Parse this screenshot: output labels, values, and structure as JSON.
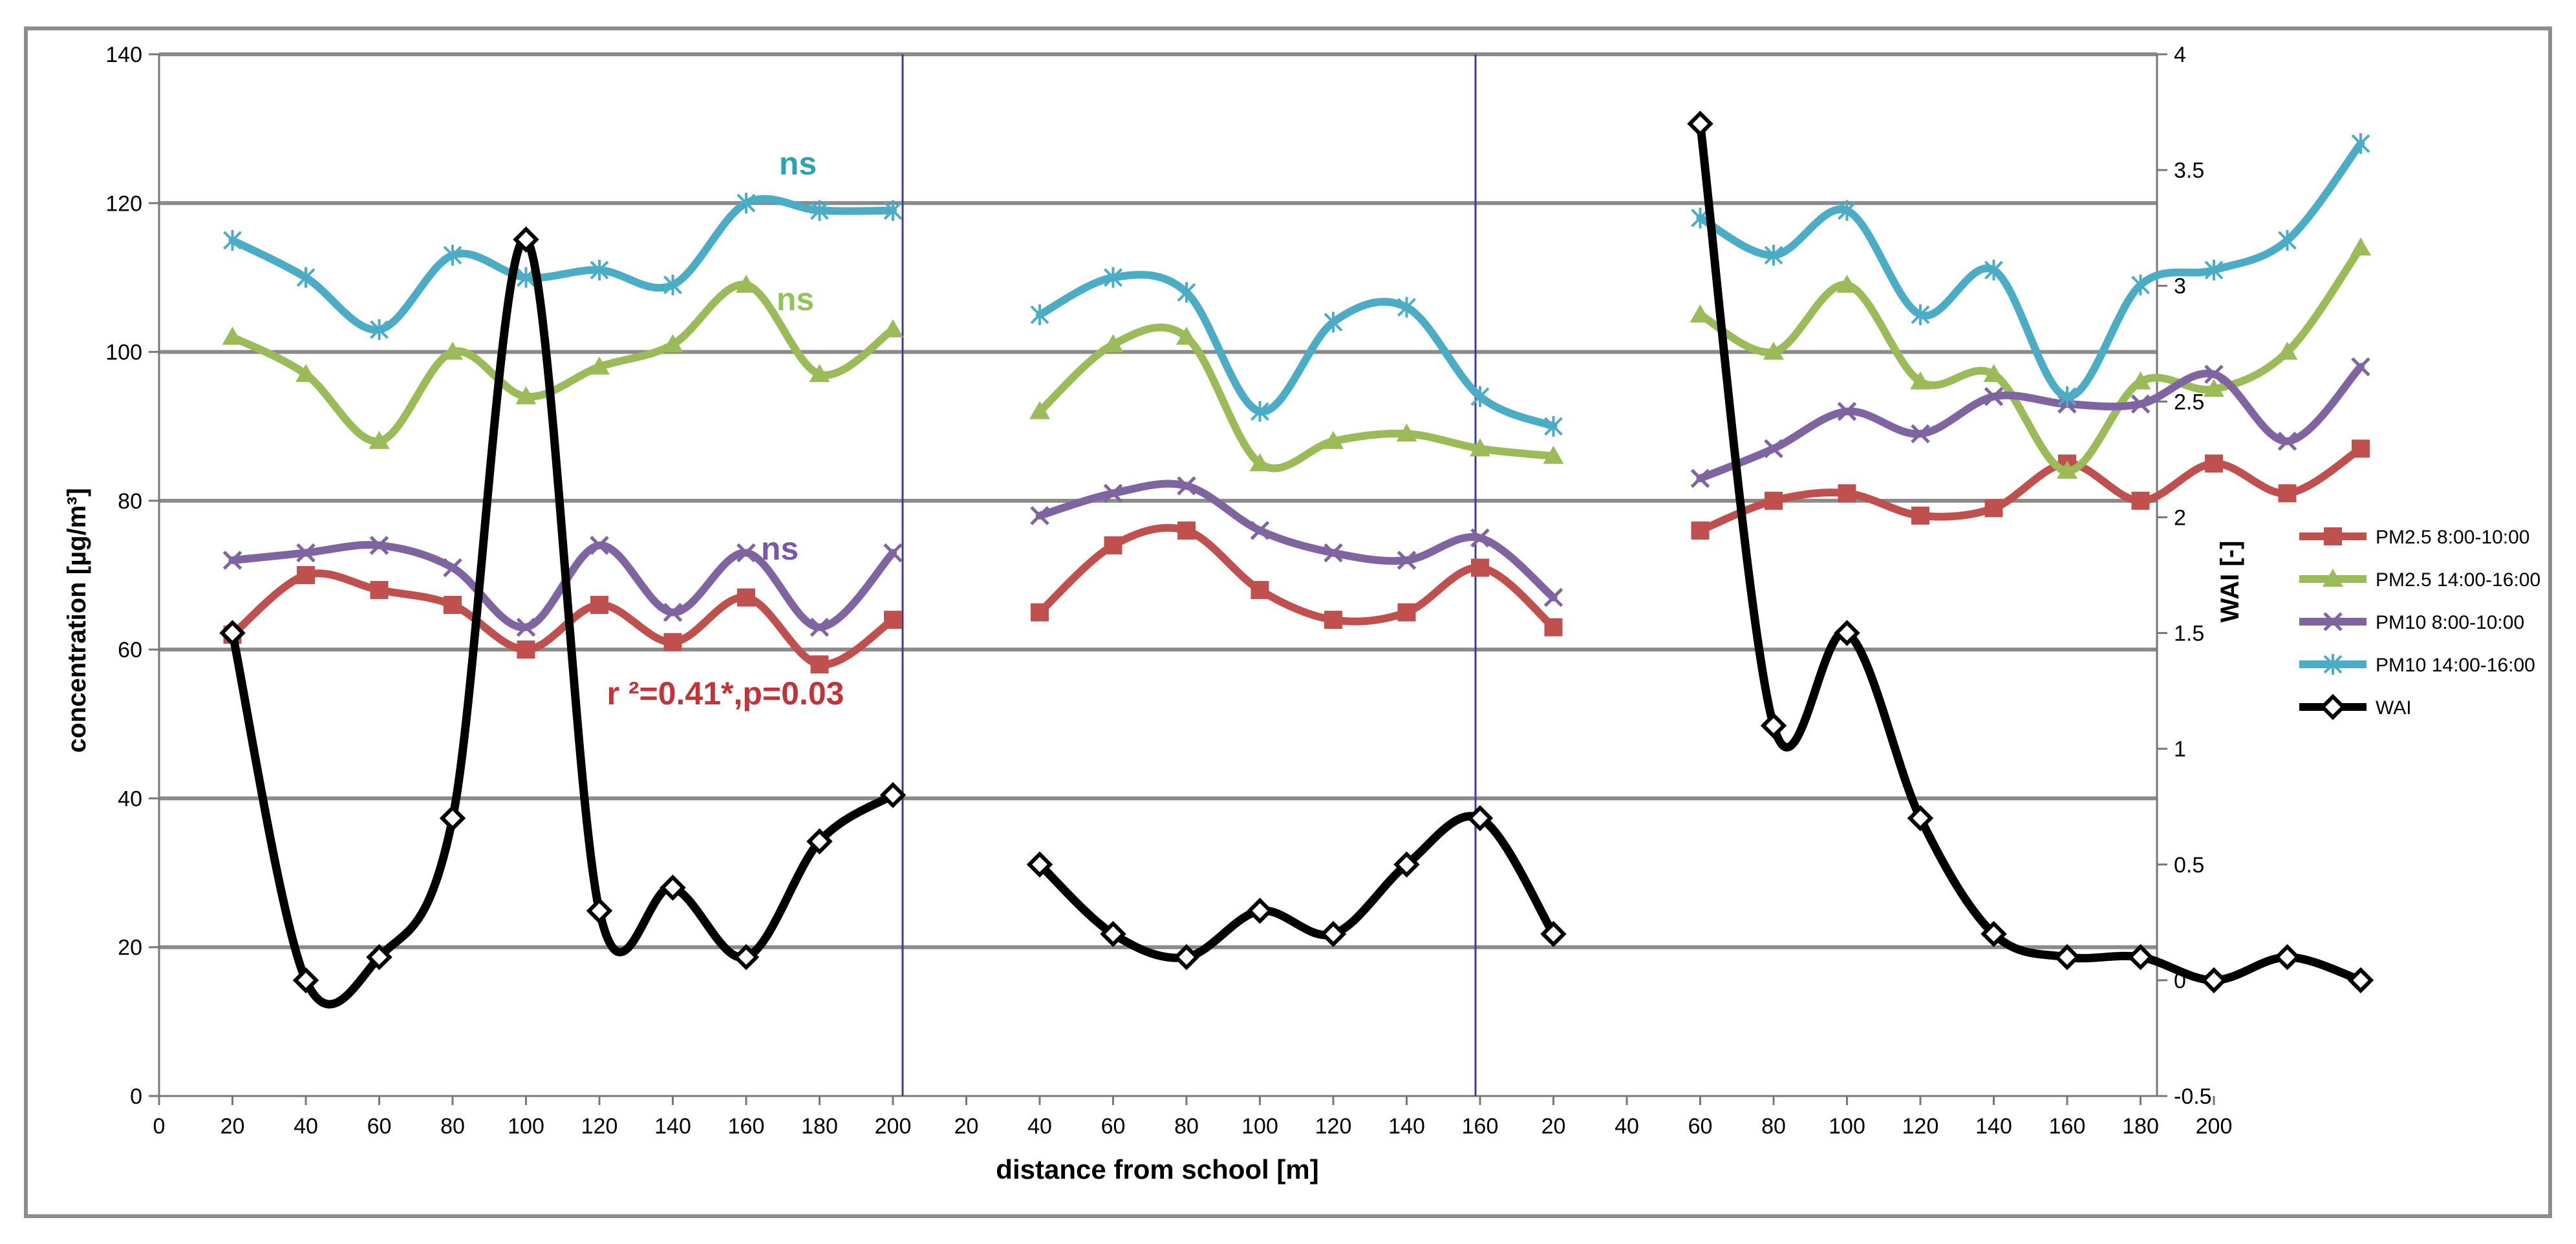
{
  "chart_data": {
    "type": "line",
    "xlabel": "distance from school [m]",
    "ylabel_left": "concentration [µg/m³]",
    "ylabel_right": "WAI [-]",
    "ylim_left": [
      0,
      140
    ],
    "yticks_left": [
      "0",
      "20",
      "40",
      "60",
      "80",
      "100",
      "120",
      "140"
    ],
    "ylim_right": [
      -0.5,
      4
    ],
    "yticks_right": [
      "-0.5",
      "0",
      "0.5",
      "1",
      "1.5",
      "2",
      "2.5",
      "3",
      "3.5",
      "4"
    ],
    "x_tick_labels": [
      "0",
      "20",
      "40",
      "60",
      "80",
      "100",
      "120",
      "140",
      "160",
      "180",
      "200",
      "20",
      "40",
      "60",
      "80",
      "100",
      "120",
      "140",
      "160",
      "20",
      "40",
      "60",
      "80",
      "100",
      "120",
      "140",
      "160",
      "180",
      "200"
    ],
    "grid": "horizontal major",
    "legend_position": "right",
    "annotations": [
      {
        "text": "ns",
        "series": "PM10 14:00-16:00",
        "panel": 1
      },
      {
        "text": "ns",
        "series": "PM2.5 14:00-16:00",
        "panel": 1
      },
      {
        "text": "ns",
        "series": "PM10 8:00-10:00",
        "panel": 1
      },
      {
        "text": "r ²=0.41*,p=0.03",
        "series": "PM2.5 8:00-10:00",
        "panel": 1
      }
    ],
    "panels": [
      {
        "x": [
          20,
          40,
          60,
          80,
          100,
          120,
          140,
          160,
          180,
          200
        ],
        "series": [
          {
            "name": "PM2.5 8:00-10:00",
            "axis": "left",
            "values": [
              62,
              70,
              68,
              66,
              60,
              66,
              61,
              67,
              58,
              64
            ]
          },
          {
            "name": "PM2.5 14:00-16:00",
            "axis": "left",
            "values": [
              102,
              97,
              88,
              100,
              94,
              98,
              101,
              109,
              97,
              103
            ]
          },
          {
            "name": "PM10 8:00-10:00",
            "axis": "left",
            "values": [
              72,
              73,
              74,
              71,
              63,
              74,
              65,
              73,
              63,
              73
            ]
          },
          {
            "name": "PM10 14:00-16:00",
            "axis": "left",
            "values": [
              115,
              110,
              103,
              113,
              110,
              111,
              109,
              120,
              119,
              119
            ]
          },
          {
            "name": "WAI",
            "axis": "right",
            "values": [
              1.5,
              0,
              0.1,
              0.7,
              3.2,
              0.3,
              0.4,
              0.1,
              0.6,
              0.8
            ]
          }
        ]
      },
      {
        "x": [
          20,
          40,
          60,
          80,
          100,
          120,
          140,
          160
        ],
        "series": [
          {
            "name": "PM2.5 8:00-10:00",
            "axis": "left",
            "values": [
              65,
              74,
              76,
              68,
              64,
              65,
              71,
              63
            ]
          },
          {
            "name": "PM2.5 14:00-16:00",
            "axis": "left",
            "values": [
              92,
              101,
              102,
              85,
              88,
              89,
              87,
              86
            ]
          },
          {
            "name": "PM10 8:00-10:00",
            "axis": "left",
            "values": [
              78,
              81,
              82,
              76,
              73,
              72,
              75,
              67
            ]
          },
          {
            "name": "PM10 14:00-16:00",
            "axis": "left",
            "values": [
              105,
              110,
              108,
              92,
              104,
              106,
              94,
              90
            ]
          },
          {
            "name": "WAI",
            "axis": "right",
            "values": [
              0.5,
              0.2,
              0.1,
              0.3,
              0.2,
              0.5,
              0.7,
              0.2
            ]
          }
        ]
      },
      {
        "x": [
          20,
          40,
          60,
          80,
          100,
          120,
          140,
          160,
          180,
          200
        ],
        "series": [
          {
            "name": "PM2.5 8:00-10:00",
            "axis": "left",
            "values": [
              76,
              80,
              81,
              78,
              79,
              85,
              80,
              85,
              81,
              87
            ]
          },
          {
            "name": "PM2.5 14:00-16:00",
            "axis": "left",
            "values": [
              105,
              100,
              109,
              96,
              97,
              84,
              96,
              95,
              100,
              114
            ]
          },
          {
            "name": "PM10 8:00-10:00",
            "axis": "left",
            "values": [
              83,
              87,
              92,
              89,
              94,
              93,
              93,
              97,
              88,
              98
            ]
          },
          {
            "name": "PM10 14:00-16:00",
            "axis": "left",
            "values": [
              118,
              113,
              119,
              105,
              111,
              94,
              109,
              111,
              115,
              128
            ]
          },
          {
            "name": "WAI",
            "axis": "right",
            "values": [
              3.7,
              1.1,
              1.5,
              0.7,
              0.2,
              0.1,
              0.1,
              0,
              0.1,
              0
            ]
          }
        ]
      }
    ],
    "legend": [
      {
        "name": "PM2.5 8:00-10:00",
        "color": "#c0504d",
        "marker": "square"
      },
      {
        "name": "PM2.5 14:00-16:00",
        "color": "#9bbb59",
        "marker": "triangle"
      },
      {
        "name": "PM10 8:00-10:00",
        "color": "#8064a2",
        "marker": "x"
      },
      {
        "name": "PM10 14:00-16:00",
        "color": "#4bacc6",
        "marker": "star"
      },
      {
        "name": "WAI",
        "color": "#000000",
        "marker": "diamond"
      }
    ]
  }
}
